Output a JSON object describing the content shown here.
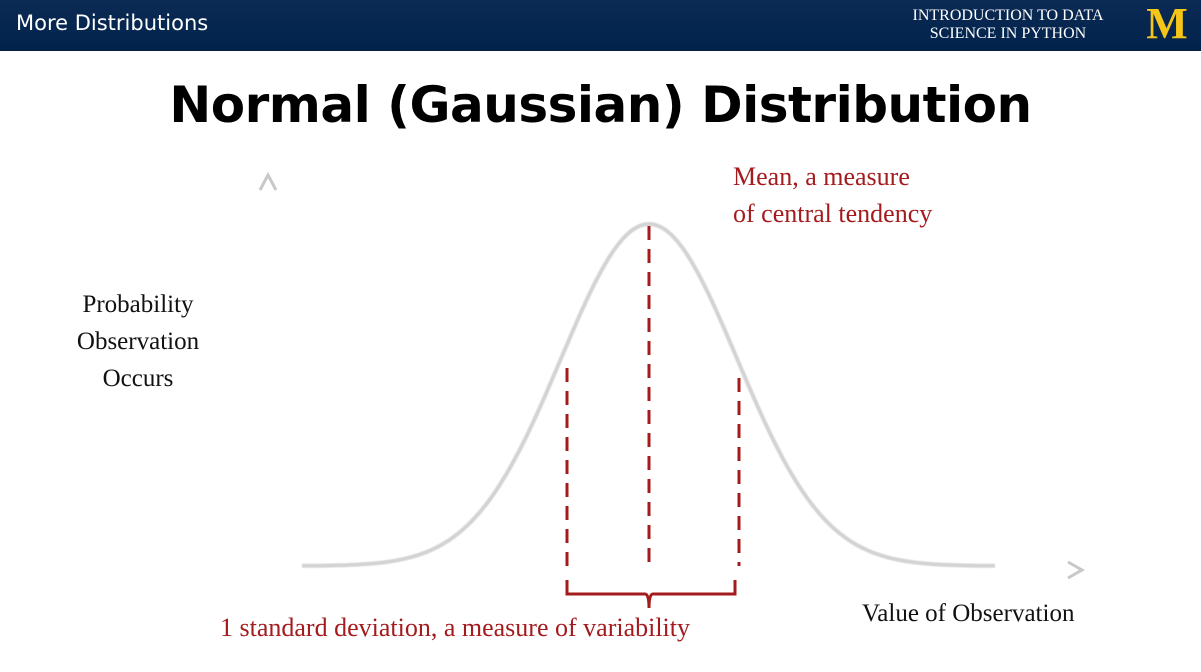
{
  "header": {
    "title": "More Distributions",
    "course_line1": "INTRODUCTION TO DATA",
    "course_line2": "SCIENCE  IN PYTHON",
    "logo_letter": "M",
    "colors": {
      "bar": "#00234c",
      "logo": "#f5c518"
    }
  },
  "slide": {
    "title": "Normal (Gaussian) Distribution"
  },
  "diagram": {
    "y_axis_label": [
      "Probability",
      "Observation",
      "Occurs"
    ],
    "x_axis_label": "Value of Observation",
    "mean_annotation": [
      "Mean, a measure",
      "of central tendency"
    ],
    "sd_annotation": "1 standard deviation, a measure of variability",
    "colors": {
      "curve": "#d3d3d3",
      "axes": "#c8c8c8",
      "annotation": "#a41b1e"
    }
  }
}
